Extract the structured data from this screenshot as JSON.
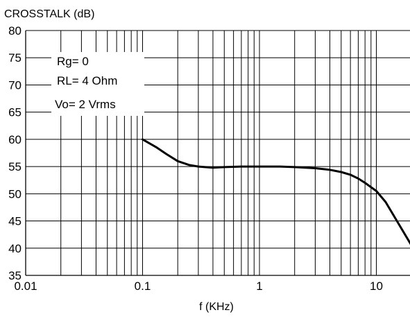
{
  "chart_data": {
    "type": "line",
    "title": "",
    "ylabel": "CROSSTALK (dB)",
    "xlabel": "f (KHz)",
    "x_scale": "log",
    "xlim": [
      0.01,
      20
    ],
    "ylim": [
      35,
      80
    ],
    "grid": true,
    "x_ticks": [
      {
        "value": 0.01,
        "label": "0.01"
      },
      {
        "value": 0.1,
        "label": "0.1"
      },
      {
        "value": 1,
        "label": "1"
      },
      {
        "value": 10,
        "label": "10"
      }
    ],
    "y_ticks": [
      {
        "value": 35,
        "label": "35"
      },
      {
        "value": 40,
        "label": "40"
      },
      {
        "value": 45,
        "label": "45"
      },
      {
        "value": 50,
        "label": "50"
      },
      {
        "value": 55,
        "label": "55"
      },
      {
        "value": 60,
        "label": "60"
      },
      {
        "value": 65,
        "label": "65"
      },
      {
        "value": 70,
        "label": "70"
      },
      {
        "value": 75,
        "label": "75"
      },
      {
        "value": 80,
        "label": "80"
      }
    ],
    "annotations": [
      "Rg= 0",
      "RL= 4 Ohm",
      "Vo= 2 Vrms"
    ],
    "series": [
      {
        "x": [
          0.1,
          0.13,
          0.16,
          0.2,
          0.25,
          0.3,
          0.4,
          0.5,
          0.7,
          1,
          1.5,
          2,
          3,
          4,
          5,
          6,
          7,
          8,
          10,
          12,
          15,
          20
        ],
        "y": [
          60,
          58.6,
          57.3,
          56,
          55.3,
          55,
          54.8,
          54.9,
          55,
          55,
          55,
          54.9,
          54.7,
          54.4,
          54,
          53.5,
          52.8,
          52,
          50.5,
          48.5,
          45,
          40.5
        ]
      }
    ]
  }
}
